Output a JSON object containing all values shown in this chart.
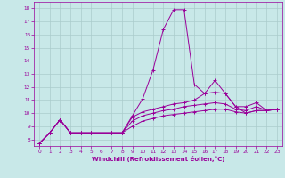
{
  "xlabel": "Windchill (Refroidissement éolien,°C)",
  "background_color": "#c8e8e8",
  "line_color": "#990099",
  "grid_color": "#aacccc",
  "xlim": [
    -0.5,
    23.5
  ],
  "ylim": [
    7.5,
    18.5
  ],
  "xticks": [
    0,
    1,
    2,
    3,
    4,
    5,
    6,
    7,
    8,
    9,
    10,
    11,
    12,
    13,
    14,
    15,
    16,
    17,
    18,
    19,
    20,
    21,
    22,
    23
  ],
  "yticks": [
    8,
    9,
    10,
    11,
    12,
    13,
    14,
    15,
    16,
    17,
    18
  ],
  "lines": [
    [
      7.7,
      8.5,
      9.5,
      8.5,
      8.5,
      8.5,
      8.5,
      8.5,
      8.5,
      9.8,
      11.1,
      13.3,
      16.4,
      17.9,
      17.9,
      12.2,
      11.5,
      12.5,
      11.5,
      10.5,
      10.0,
      10.2,
      10.2,
      10.3
    ],
    [
      7.7,
      8.5,
      9.5,
      8.5,
      8.5,
      8.5,
      8.5,
      8.5,
      8.5,
      9.7,
      10.1,
      10.3,
      10.5,
      10.7,
      10.8,
      11.0,
      11.5,
      11.6,
      11.5,
      10.5,
      10.5,
      10.8,
      10.2,
      10.3
    ],
    [
      7.7,
      8.5,
      9.5,
      8.5,
      8.5,
      8.5,
      8.5,
      8.5,
      8.5,
      9.4,
      9.8,
      10.0,
      10.2,
      10.3,
      10.5,
      10.6,
      10.7,
      10.8,
      10.7,
      10.3,
      10.2,
      10.5,
      10.2,
      10.3
    ],
    [
      7.7,
      8.5,
      9.5,
      8.5,
      8.5,
      8.5,
      8.5,
      8.5,
      8.5,
      9.0,
      9.4,
      9.6,
      9.8,
      9.9,
      10.0,
      10.1,
      10.2,
      10.3,
      10.3,
      10.1,
      10.0,
      10.2,
      10.2,
      10.3
    ]
  ]
}
